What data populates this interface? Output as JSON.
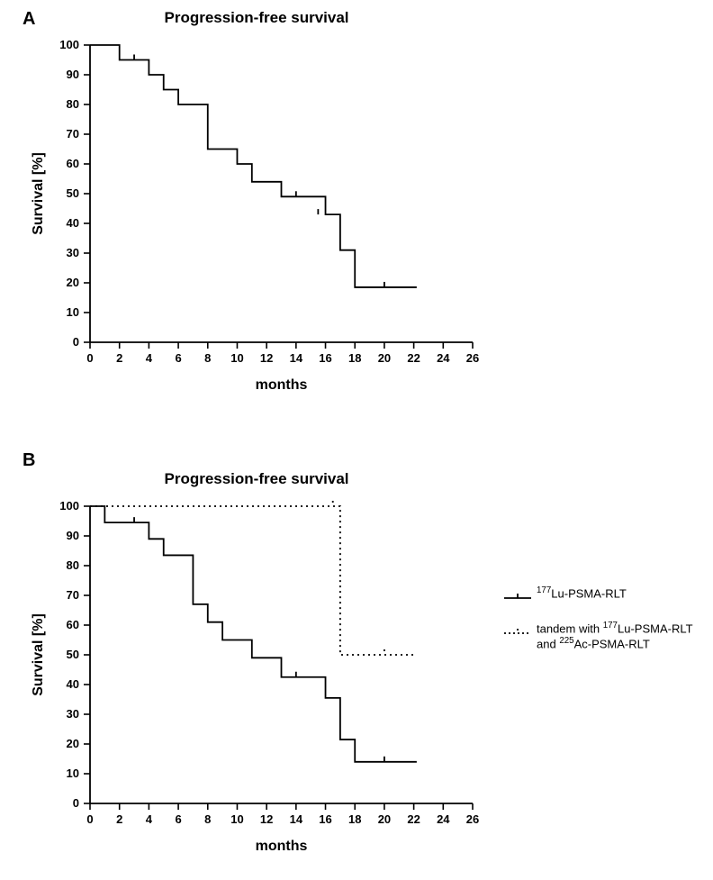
{
  "panelA": {
    "label": "A",
    "title": "Progression-free survival",
    "xlabel": "months",
    "ylabel": "Survival [%]",
    "xlim": [
      0,
      26
    ],
    "ylim": [
      0,
      100
    ],
    "xticks": [
      0,
      2,
      4,
      6,
      8,
      10,
      12,
      14,
      16,
      18,
      20,
      22,
      24,
      26
    ],
    "yticks": [
      0,
      10,
      20,
      30,
      40,
      50,
      60,
      70,
      80,
      90,
      100
    ],
    "xtick_labels": [
      "0",
      "2",
      "4",
      "6",
      "8",
      "10",
      "12",
      "14",
      "16",
      "18",
      "20",
      "22",
      "24",
      "26"
    ],
    "ytick_labels": [
      "0",
      "10",
      "20",
      "30",
      "40",
      "50",
      "60",
      "70",
      "80",
      "90",
      "100"
    ],
    "axis_fontsize": 13,
    "label_fontsize": 16,
    "title_fontsize": 17,
    "line_color": "#000000",
    "line_width": 1.8,
    "tick_color": "#000000",
    "background_color": "#ffffff",
    "series": {
      "type": "step",
      "points": [
        [
          0,
          100
        ],
        [
          2,
          95
        ],
        [
          3,
          95
        ],
        [
          4,
          90
        ],
        [
          5,
          85
        ],
        [
          6,
          80
        ],
        [
          7,
          80
        ],
        [
          8,
          65
        ],
        [
          9,
          65
        ],
        [
          10,
          60
        ],
        [
          11,
          54
        ],
        [
          13,
          49
        ],
        [
          14,
          49
        ],
        [
          15,
          49
        ],
        [
          16,
          43
        ],
        [
          17,
          31
        ],
        [
          18,
          18.5
        ],
        [
          22.2,
          18.5
        ]
      ],
      "censor_ticks": [
        [
          3,
          95
        ],
        [
          14,
          49
        ],
        [
          15.5,
          43
        ],
        [
          20,
          18.5
        ]
      ]
    }
  },
  "panelB": {
    "label": "B",
    "title": "Progression-free survival",
    "xlabel": "months",
    "ylabel": "Survival [%]",
    "xlim": [
      0,
      26
    ],
    "ylim": [
      0,
      100
    ],
    "xticks": [
      0,
      2,
      4,
      6,
      8,
      10,
      12,
      14,
      16,
      18,
      20,
      22,
      24,
      26
    ],
    "yticks": [
      0,
      10,
      20,
      30,
      40,
      50,
      60,
      70,
      80,
      90,
      100
    ],
    "xtick_labels": [
      "0",
      "2",
      "4",
      "6",
      "8",
      "10",
      "12",
      "14",
      "16",
      "18",
      "20",
      "22",
      "24",
      "26"
    ],
    "ytick_labels": [
      "0",
      "10",
      "20",
      "30",
      "40",
      "50",
      "60",
      "70",
      "80",
      "90",
      "100"
    ],
    "axis_fontsize": 13,
    "label_fontsize": 16,
    "title_fontsize": 17,
    "background_color": "#ffffff",
    "series1": {
      "name_html": "<sup>177</sup>Lu-PSMA-RLT",
      "line_style": "solid",
      "line_color": "#000000",
      "line_width": 1.8,
      "points": [
        [
          0,
          100
        ],
        [
          1,
          94.5
        ],
        [
          3,
          94.5
        ],
        [
          4,
          89
        ],
        [
          5,
          83.5
        ],
        [
          6,
          83.5
        ],
        [
          7,
          67
        ],
        [
          8,
          61
        ],
        [
          9,
          55
        ],
        [
          10,
          55
        ],
        [
          11,
          49
        ],
        [
          13,
          42.5
        ],
        [
          15,
          42.5
        ],
        [
          16,
          35.5
        ],
        [
          17,
          21.5
        ],
        [
          18,
          14
        ],
        [
          22.2,
          14
        ]
      ],
      "censor_ticks": [
        [
          3,
          94.5
        ],
        [
          14,
          42.5
        ],
        [
          20,
          14
        ]
      ]
    },
    "series2": {
      "name_html": "tandem with <sup>177</sup>Lu-PSMA-RLT<br>and <sup>225</sup>Ac-PSMA-RLT",
      "line_style": "dotted",
      "line_color": "#000000",
      "line_width": 1.8,
      "points": [
        [
          0,
          100
        ],
        [
          16.5,
          100
        ],
        [
          17,
          50
        ],
        [
          22,
          50
        ]
      ],
      "censor_ticks": [
        [
          16.5,
          100
        ],
        [
          20,
          50
        ]
      ]
    }
  },
  "legend": {
    "item1_html": "<sup>177</sup>Lu-PSMA-RLT",
    "item2_html": "tandem with <sup>177</sup>Lu-PSMA-RLT<br>and <sup>225</sup>Ac-PSMA-RLT"
  }
}
